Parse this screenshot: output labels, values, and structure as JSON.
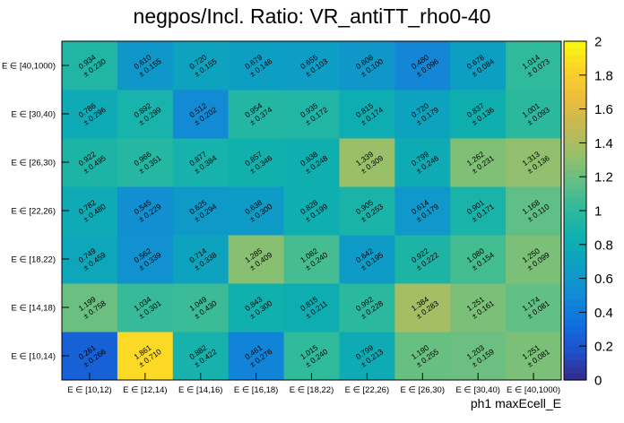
{
  "chart_data": {
    "type": "heatmap",
    "title": "negpos/Incl. Ratio: VR_antiTT_rho0-40",
    "xlabel": "ph1 maxEcell_E",
    "ylabel": "",
    "x_categories": [
      "E ∈ [10,12)",
      "E ∈ [12,14)",
      "E ∈ [14,16)",
      "E ∈ [16,18)",
      "E ∈ [18,22)",
      "E ∈ [22,26)",
      "E ∈ [26,30)",
      "E ∈ [30,40)",
      "E ∈ [40,1000)"
    ],
    "y_categories": [
      "E ∈ [10,14)",
      "E ∈ [14,18)",
      "E ∈ [18,22)",
      "E ∈ [22,26)",
      "E ∈ [26,30)",
      "E ∈ [30,40)",
      "E ∈ [40,1000)"
    ],
    "values": [
      [
        0.261,
        1.861,
        0.882,
        0.461,
        1.015,
        0.799,
        1.19,
        1.203,
        1.251
      ],
      [
        1.199,
        1.034,
        1.049,
        0.843,
        0.815,
        0.992,
        1.384,
        1.251,
        1.174
      ],
      [
        0.749,
        0.562,
        0.714,
        1.285,
        1.082,
        0.642,
        0.922,
        1.08,
        1.25
      ],
      [
        0.782,
        0.545,
        0.625,
        0.638,
        0.828,
        0.905,
        0.614,
        0.901,
        1.168
      ],
      [
        0.922,
        0.966,
        0.877,
        0.857,
        0.838,
        1.339,
        0.799,
        1.262,
        1.313
      ],
      [
        0.786,
        0.892,
        0.512,
        0.954,
        0.935,
        0.815,
        0.72,
        0.837,
        1.001
      ],
      [
        0.934,
        0.61,
        0.72,
        0.679,
        0.655,
        0.608,
        0.48,
        0.678,
        1.014
      ]
    ],
    "errors": [
      [
        0.266,
        0.71,
        0.422,
        0.276,
        0.24,
        0.213,
        0.255,
        0.159,
        0.081
      ],
      [
        0.758,
        0.301,
        0.43,
        0.3,
        0.211,
        0.228,
        0.283,
        0.161,
        0.081
      ],
      [
        0.459,
        0.339,
        0.338,
        0.409,
        0.24,
        0.195,
        0.222,
        0.154,
        0.099
      ],
      [
        0.48,
        0.229,
        0.294,
        0.3,
        0.199,
        0.253,
        0.179,
        0.171,
        0.11
      ],
      [
        0.495,
        0.351,
        0.384,
        0.346,
        0.248,
        0.309,
        0.246,
        0.231,
        0.136
      ],
      [
        0.296,
        0.299,
        0.202,
        0.374,
        0.172,
        0.174,
        0.179,
        0.136,
        0.093
      ],
      [
        0.23,
        0.155,
        0.155,
        0.146,
        0.103,
        0.1,
        0.096,
        0.084,
        0.073
      ]
    ],
    "zlim": [
      0,
      2
    ],
    "z_ticks": [
      "0",
      "0.2",
      "0.4",
      "0.6",
      "0.8",
      "1",
      "1.2",
      "1.4",
      "1.6",
      "1.8",
      "2"
    ],
    "palette": [
      "#352a87",
      "#1f4fc8",
      "#0f6fe0",
      "#138ad5",
      "#0d9ec4",
      "#0eafb0",
      "#2bb99e",
      "#60bf86",
      "#98bf6a",
      "#c4b955",
      "#ebbd3c",
      "#fdd229",
      "#f9fb0e"
    ],
    "grid": false,
    "legend": "colorbar-right"
  }
}
